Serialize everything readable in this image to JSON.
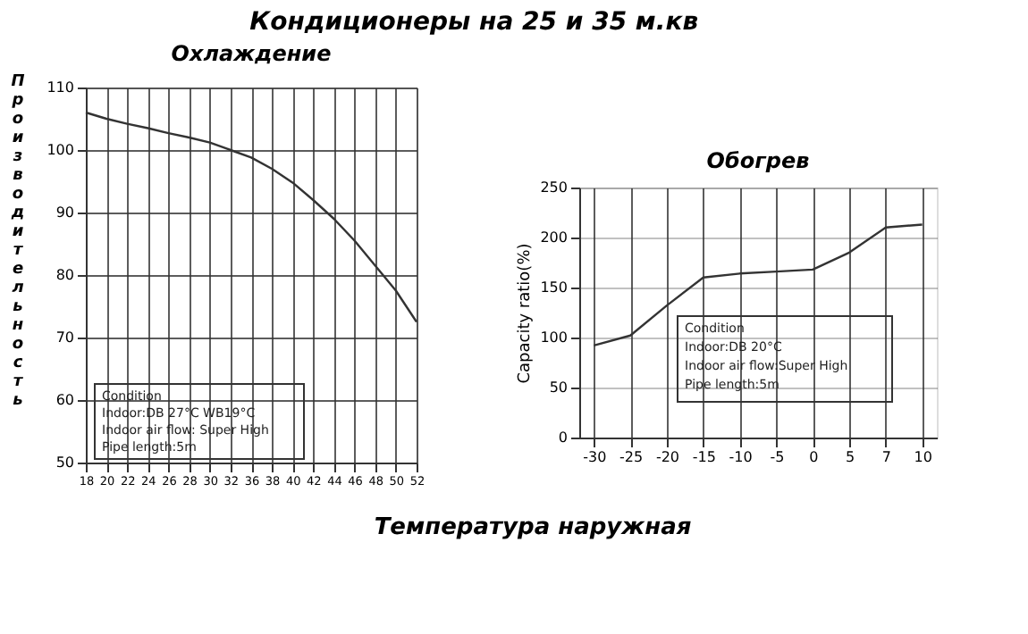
{
  "chart_data": [
    {
      "type": "line",
      "title": "Кондиционеры на 25 и 35 м.кв",
      "subtitle": "Охлаждение",
      "ylabel": "Производительность",
      "xlabel": "Температура наружная",
      "categories": [
        "18",
        "20",
        "22",
        "24",
        "26",
        "28",
        "30",
        "32",
        "36",
        "38",
        "40",
        "42",
        "44",
        "46",
        "48",
        "50",
        "52"
      ],
      "values": [
        106,
        105,
        104.2,
        103.5,
        102.7,
        102,
        101.2,
        100,
        98.8,
        97,
        94.8,
        92,
        89,
        85.5,
        81.5,
        77.5,
        72.5
      ],
      "color": "#333333",
      "ylim": [
        50,
        110
      ],
      "yticks": [
        50,
        60,
        70,
        80,
        90,
        100,
        110
      ],
      "grid": true,
      "annotations": [
        "Condition\nIndoor:DB 27°C  WB19°C\nIndoor air flow: Super High\nPipe length:5m"
      ]
    },
    {
      "type": "line",
      "title": "Обогрев",
      "ylabel": "Capacity ratio(%)",
      "categories": [
        "-30",
        "-25",
        "-20",
        "-15",
        "-10",
        "-5",
        "0",
        "5",
        "7",
        "10"
      ],
      "values": [
        92,
        102,
        132,
        160,
        164,
        166,
        168,
        185,
        210,
        213
      ],
      "color": "#333333",
      "ylim": [
        0,
        250
      ],
      "yticks": [
        0,
        50,
        100,
        150,
        200,
        250
      ],
      "grid": true,
      "annotations": [
        "Condition\nIndoor:DB 20°C\nIndoor air flow:Super High\nPipe length:5m"
      ]
    }
  ]
}
